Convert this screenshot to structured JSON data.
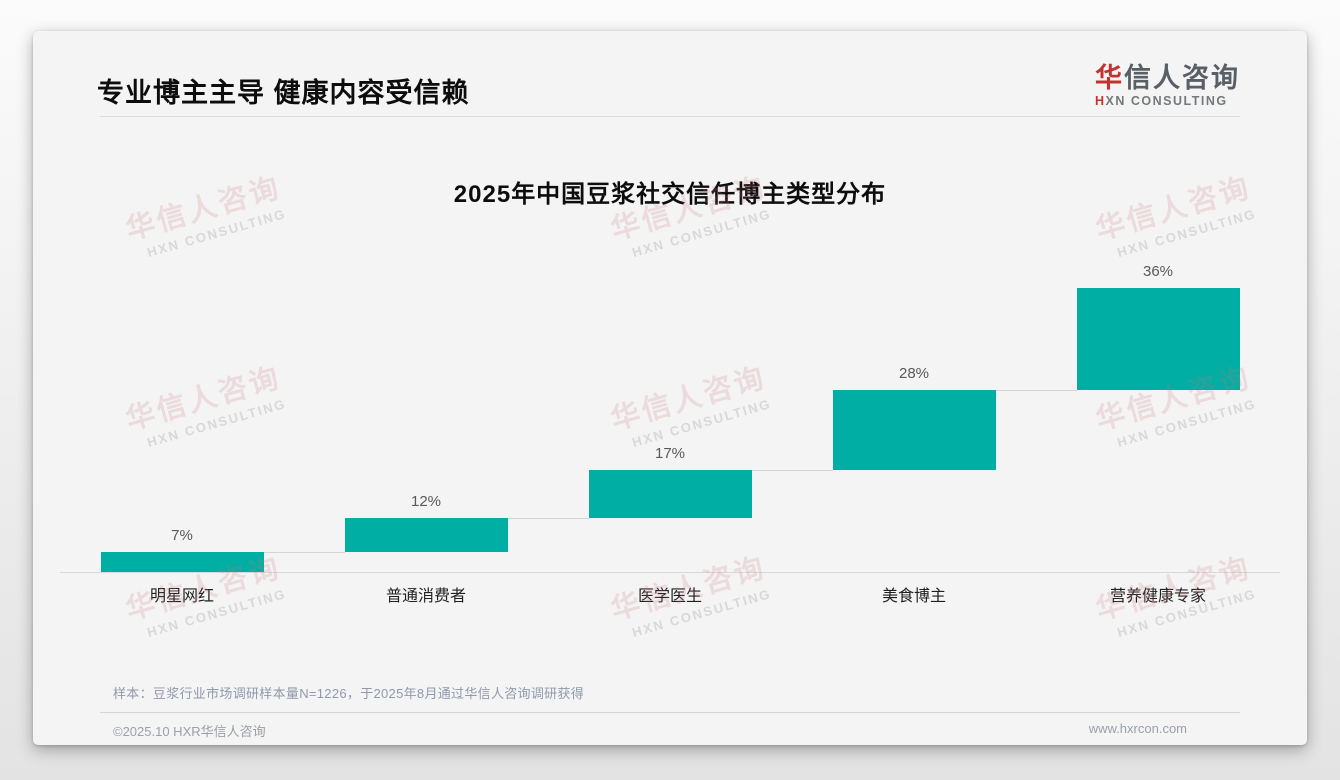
{
  "header": {
    "title": "专业博主主导 健康内容受信赖"
  },
  "logo": {
    "cn_accent": "华",
    "cn_rest": "信人咨询",
    "en_accent": "H",
    "en_rest": "XN CONSULTING"
  },
  "watermark": {
    "cn": "华信人咨询",
    "en": "HXN CONSULTING"
  },
  "chart_data": {
    "type": "bar",
    "subtype": "waterfall",
    "title": "2025年中国豆浆社交信任博主类型分布",
    "categories": [
      "明星网红",
      "普通消费者",
      "医学医生",
      "美食博主",
      "营养健康专家"
    ],
    "values": [
      7,
      12,
      17,
      28,
      36
    ],
    "value_labels": [
      "7%",
      "12%",
      "17%",
      "28%",
      "36%"
    ],
    "cumulative": [
      7,
      19,
      36,
      64,
      100
    ],
    "ylim": [
      0,
      100
    ],
    "bar_color": "#00aea4",
    "grid": false,
    "legend": "none",
    "xlabel": "",
    "ylabel": ""
  },
  "footnote": "样本：豆浆行业市场调研样本量N=1226，于2025年8月通过华信人咨询调研获得",
  "footer": {
    "left": "©2025.10 HXR华信人咨询",
    "right": "www.hxrcon.com"
  },
  "colors": {
    "accent_red": "#c1332e",
    "bar_teal": "#00aea4",
    "percent_label": "#595959",
    "category_label": "#1f1f1f"
  }
}
